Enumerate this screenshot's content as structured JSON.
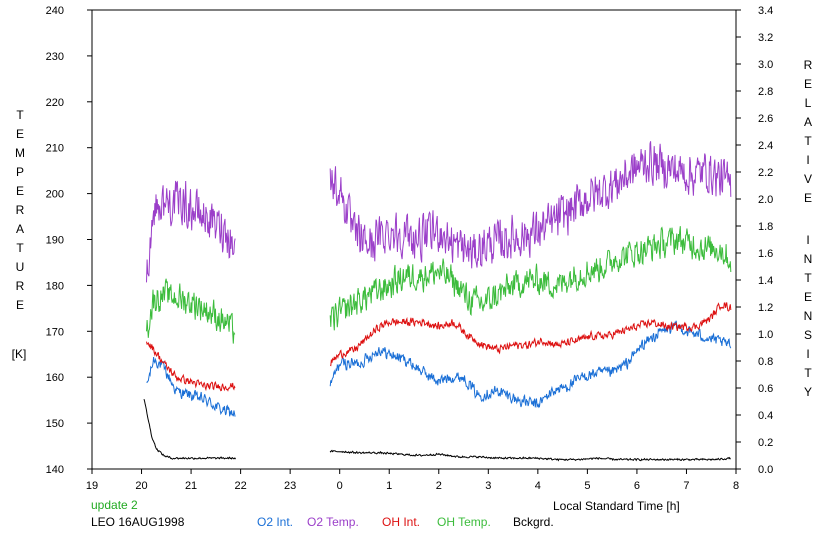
{
  "chart_data": {
    "type": "line",
    "title": "",
    "left_axis": {
      "label_letters": [
        "T",
        "E",
        "M",
        "P",
        "E",
        "R",
        "A",
        "T",
        "U",
        "R",
        "E"
      ],
      "unit": "[K]",
      "ylim": [
        140,
        240
      ],
      "ticks": [
        140,
        150,
        160,
        170,
        180,
        190,
        200,
        210,
        220,
        230,
        240
      ]
    },
    "right_axis": {
      "label_letters_1": [
        "R",
        "E",
        "L",
        "A",
        "T",
        "I",
        "V",
        "E"
      ],
      "label_letters_2": [
        "I",
        "N",
        "T",
        "E",
        "N",
        "S",
        "I",
        "T",
        "Y"
      ],
      "ylim": [
        0.0,
        3.4
      ],
      "ticks": [
        "0.0",
        "0.2",
        "0.4",
        "0.6",
        "0.8",
        "1.0",
        "1.2",
        "1.4",
        "1.6",
        "1.8",
        "2.0",
        "2.2",
        "2.4",
        "2.6",
        "2.8",
        "3.0",
        "3.2",
        "3.4"
      ]
    },
    "x_axis": {
      "label": "Local Standard Time [h]",
      "xlim": [
        19,
        32
      ],
      "tick_labels": [
        "19",
        "20",
        "21",
        "22",
        "23",
        "0",
        "1",
        "2",
        "3",
        "4",
        "5",
        "6",
        "7",
        "8"
      ]
    },
    "footer": {
      "update": "update 2",
      "station": "LEO 16AUG1998"
    },
    "gap": [
      21.9,
      23.8
    ],
    "series": [
      {
        "name": "O2 Int.",
        "axis": "left",
        "color": "#1a6fd6",
        "noise": 2.2,
        "points": [
          [
            20.1,
            158
          ],
          [
            20.25,
            164
          ],
          [
            20.45,
            162
          ],
          [
            20.7,
            157
          ],
          [
            21.0,
            156
          ],
          [
            21.3,
            155
          ],
          [
            21.6,
            153
          ],
          [
            21.9,
            152
          ],
          [
            23.8,
            158
          ],
          [
            24.0,
            163
          ],
          [
            24.4,
            163
          ],
          [
            24.8,
            166
          ],
          [
            25.0,
            165
          ],
          [
            25.3,
            164
          ],
          [
            25.7,
            161
          ],
          [
            26.0,
            159
          ],
          [
            26.2,
            160
          ],
          [
            26.5,
            160
          ],
          [
            26.8,
            156
          ],
          [
            27.2,
            157
          ],
          [
            27.6,
            155
          ],
          [
            28.0,
            154
          ],
          [
            28.3,
            157
          ],
          [
            28.6,
            158
          ],
          [
            28.9,
            160
          ],
          [
            29.2,
            161
          ],
          [
            29.5,
            161
          ],
          [
            29.8,
            163
          ],
          [
            30.1,
            167
          ],
          [
            30.5,
            170
          ],
          [
            30.8,
            171
          ],
          [
            31.0,
            170
          ],
          [
            31.3,
            169
          ],
          [
            31.6,
            168
          ],
          [
            31.9,
            167
          ]
        ]
      },
      {
        "name": "O2 Temp.",
        "axis": "left",
        "color": "#9b3fc9",
        "noise": 8,
        "points": [
          [
            20.1,
            182
          ],
          [
            20.25,
            197
          ],
          [
            20.5,
            198
          ],
          [
            20.8,
            198
          ],
          [
            21.1,
            196
          ],
          [
            21.4,
            194
          ],
          [
            21.7,
            192
          ],
          [
            21.9,
            188
          ],
          [
            23.8,
            203
          ],
          [
            24.0,
            201
          ],
          [
            24.3,
            191
          ],
          [
            24.6,
            189
          ],
          [
            25.0,
            192
          ],
          [
            25.3,
            191
          ],
          [
            25.6,
            190
          ],
          [
            26.0,
            192
          ],
          [
            26.3,
            189
          ],
          [
            26.7,
            187
          ],
          [
            27.0,
            189
          ],
          [
            27.4,
            190
          ],
          [
            27.8,
            191
          ],
          [
            28.2,
            193
          ],
          [
            28.6,
            196
          ],
          [
            29.0,
            199
          ],
          [
            29.4,
            201
          ],
          [
            29.8,
            204
          ],
          [
            30.2,
            207
          ],
          [
            30.5,
            206
          ],
          [
            30.8,
            205
          ],
          [
            31.1,
            204
          ],
          [
            31.4,
            205
          ],
          [
            31.9,
            202
          ]
        ]
      },
      {
        "name": "OH Int.",
        "axis": "left",
        "color": "#dd1111",
        "noise": 1.5,
        "points": [
          [
            20.1,
            168
          ],
          [
            20.25,
            166
          ],
          [
            20.45,
            163
          ],
          [
            20.7,
            160
          ],
          [
            21.0,
            159
          ],
          [
            21.3,
            158
          ],
          [
            21.6,
            158
          ],
          [
            21.9,
            158
          ],
          [
            23.8,
            163
          ],
          [
            24.0,
            165
          ],
          [
            24.3,
            166
          ],
          [
            24.6,
            169
          ],
          [
            24.8,
            171
          ],
          [
            25.0,
            172
          ],
          [
            25.3,
            172
          ],
          [
            25.7,
            172
          ],
          [
            26.0,
            171
          ],
          [
            26.3,
            172
          ],
          [
            26.6,
            169
          ],
          [
            26.9,
            167
          ],
          [
            27.2,
            166
          ],
          [
            27.5,
            167
          ],
          [
            27.8,
            167
          ],
          [
            28.1,
            168
          ],
          [
            28.4,
            167
          ],
          [
            28.8,
            168
          ],
          [
            29.1,
            169
          ],
          [
            29.4,
            169
          ],
          [
            29.7,
            170
          ],
          [
            30.0,
            171
          ],
          [
            30.3,
            172
          ],
          [
            30.6,
            171
          ],
          [
            30.9,
            171
          ],
          [
            31.2,
            171
          ],
          [
            31.5,
            173
          ],
          [
            31.7,
            176
          ],
          [
            31.9,
            175
          ]
        ]
      },
      {
        "name": "OH Temp.",
        "axis": "left",
        "color": "#3cbc3c",
        "noise": 5.5,
        "points": [
          [
            20.1,
            170
          ],
          [
            20.25,
            177
          ],
          [
            20.5,
            178
          ],
          [
            20.8,
            177
          ],
          [
            21.1,
            176
          ],
          [
            21.4,
            174
          ],
          [
            21.7,
            172
          ],
          [
            21.9,
            170
          ],
          [
            23.8,
            172
          ],
          [
            24.0,
            174
          ],
          [
            24.3,
            176
          ],
          [
            24.6,
            178
          ],
          [
            25.0,
            180
          ],
          [
            25.3,
            182
          ],
          [
            25.6,
            182
          ],
          [
            26.0,
            183
          ],
          [
            26.3,
            181
          ],
          [
            26.6,
            177
          ],
          [
            26.9,
            176
          ],
          [
            27.2,
            178
          ],
          [
            27.5,
            180
          ],
          [
            27.8,
            181
          ],
          [
            28.1,
            181
          ],
          [
            28.4,
            180
          ],
          [
            28.7,
            182
          ],
          [
            29.0,
            183
          ],
          [
            29.3,
            184
          ],
          [
            29.6,
            186
          ],
          [
            29.9,
            187
          ],
          [
            30.2,
            188
          ],
          [
            30.5,
            189
          ],
          [
            30.8,
            190
          ],
          [
            31.1,
            189
          ],
          [
            31.4,
            188
          ],
          [
            31.7,
            188
          ],
          [
            31.9,
            185
          ]
        ]
      },
      {
        "name": "Bckgrd.",
        "axis": "right",
        "color": "#000000",
        "noise": 0.012,
        "points": [
          [
            20.05,
            0.52
          ],
          [
            20.2,
            0.25
          ],
          [
            20.3,
            0.15
          ],
          [
            20.45,
            0.1
          ],
          [
            20.6,
            0.08
          ],
          [
            20.8,
            0.08
          ],
          [
            21.1,
            0.08
          ],
          [
            21.4,
            0.08
          ],
          [
            21.9,
            0.08
          ],
          [
            23.8,
            0.13
          ],
          [
            24.0,
            0.13
          ],
          [
            24.4,
            0.12
          ],
          [
            24.8,
            0.12
          ],
          [
            25.2,
            0.11
          ],
          [
            25.6,
            0.1
          ],
          [
            26.0,
            0.11
          ],
          [
            26.4,
            0.09
          ],
          [
            26.8,
            0.09
          ],
          [
            27.2,
            0.08
          ],
          [
            27.6,
            0.08
          ],
          [
            28.0,
            0.08
          ],
          [
            28.4,
            0.07
          ],
          [
            28.8,
            0.07
          ],
          [
            29.2,
            0.08
          ],
          [
            29.6,
            0.07
          ],
          [
            30.0,
            0.07
          ],
          [
            30.4,
            0.07
          ],
          [
            30.8,
            0.07
          ],
          [
            31.2,
            0.07
          ],
          [
            31.6,
            0.07
          ],
          [
            31.9,
            0.08
          ]
        ]
      }
    ]
  }
}
